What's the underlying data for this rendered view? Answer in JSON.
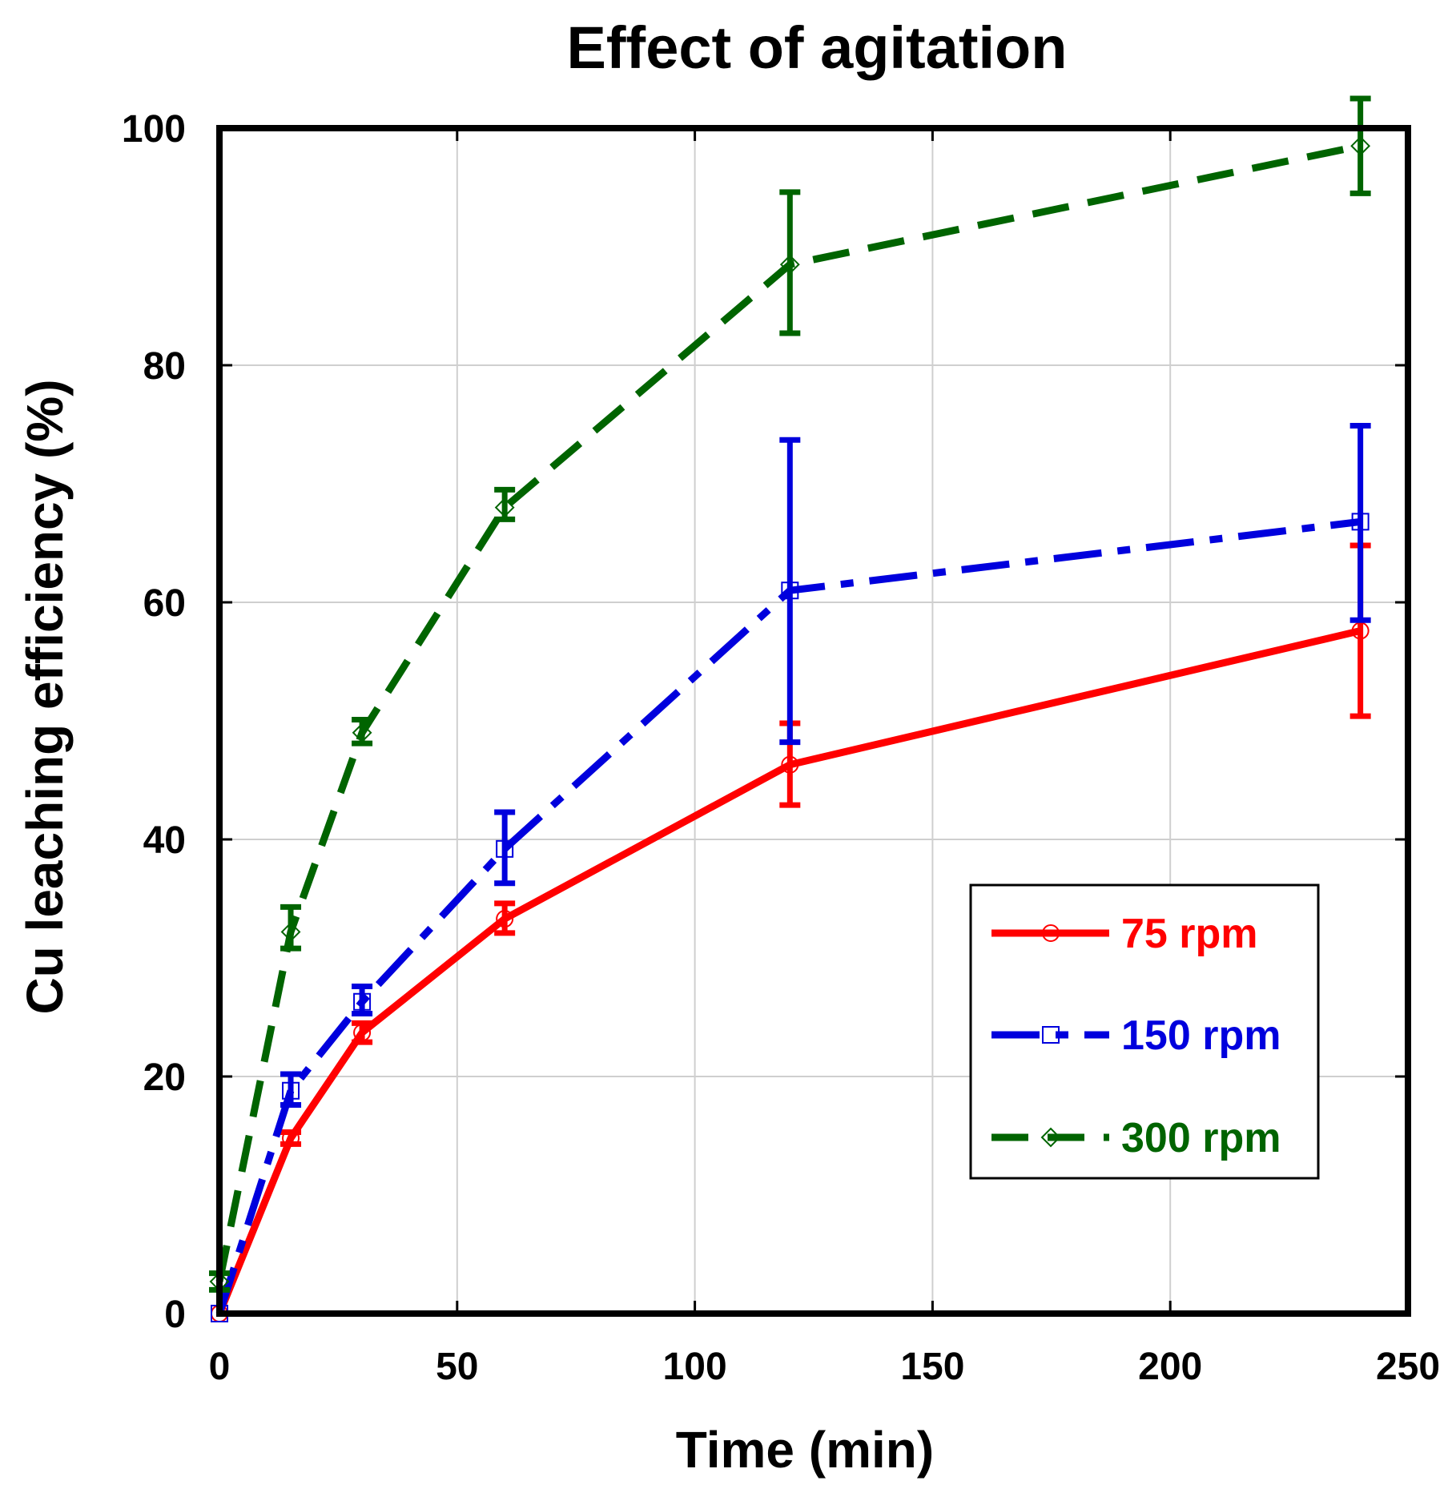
{
  "chart_data": {
    "type": "line",
    "title": "Effect of agitation",
    "xlabel": "Time (min)",
    "ylabel": "Cu leaching efficiency (%)",
    "xlim": [
      0,
      250
    ],
    "ylim": [
      0,
      100
    ],
    "xticks": [
      0,
      50,
      100,
      150,
      200,
      250
    ],
    "yticks": [
      0,
      20,
      40,
      60,
      80,
      100
    ],
    "x_tick_labels": [
      "0",
      "50",
      "100",
      "150",
      "200",
      "250"
    ],
    "y_tick_labels": [
      "0",
      "20",
      "40",
      "60",
      "80",
      "100"
    ],
    "grid": true,
    "legend_position": "lower-right",
    "series": [
      {
        "name": "75 rpm",
        "color": "#ff0000",
        "line_style": "solid",
        "marker": "circle",
        "x": [
          0,
          15,
          30,
          60,
          120,
          240
        ],
        "y": [
          0,
          14.8,
          23.7,
          33.3,
          46.3,
          57.6
        ],
        "err_low": [
          0,
          14.3,
          22.9,
          32.1,
          42.9,
          50.4
        ],
        "err_high": [
          0,
          15.3,
          24.5,
          34.6,
          49.8,
          64.8
        ]
      },
      {
        "name": "150 rpm",
        "color": "#0000dd",
        "line_style": "dashdot",
        "marker": "square",
        "x": [
          0,
          15,
          30,
          60,
          120,
          240
        ],
        "y": [
          0,
          18.8,
          26.3,
          39.2,
          61.0,
          66.8
        ],
        "err_low": [
          0,
          17.6,
          25.3,
          36.3,
          48.2,
          58.5
        ],
        "err_high": [
          0,
          20.2,
          27.6,
          42.3,
          73.7,
          74.9
        ]
      },
      {
        "name": "300 rpm",
        "color": "#006400",
        "line_style": "dashed",
        "marker": "diamond",
        "x": [
          0,
          15,
          30,
          60,
          120,
          240
        ],
        "y": [
          2.7,
          32.2,
          49.0,
          68.0,
          88.5,
          98.5
        ],
        "err_low": [
          2.0,
          30.8,
          48.1,
          67.0,
          82.7,
          94.5
        ],
        "err_high": [
          3.4,
          34.3,
          50.1,
          69.5,
          94.6,
          102.5
        ]
      }
    ]
  }
}
